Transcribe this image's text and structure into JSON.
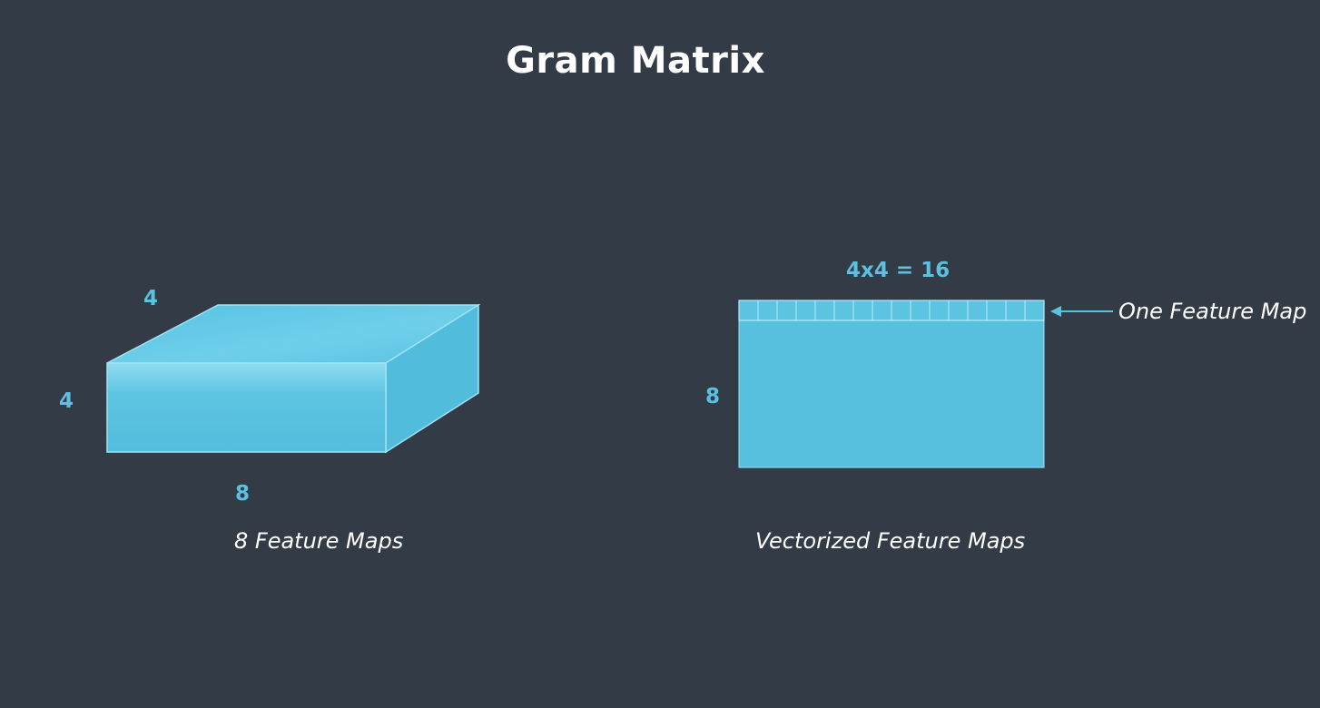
{
  "title": "Gram Matrix",
  "left_figure": {
    "depth_label": "4",
    "height_label": "4",
    "width_label": "8",
    "caption": "8 Feature Maps"
  },
  "right_figure": {
    "top_label": "4x4 = 16",
    "side_label": "8",
    "arrow_label": "One Feature Map",
    "caption": "Vectorized Feature Maps",
    "cells_per_row": 16
  },
  "colors": {
    "background": "#333b46",
    "accent": "#5bc1e0",
    "outline": "#9fe3f5",
    "text": "#ffffff"
  }
}
